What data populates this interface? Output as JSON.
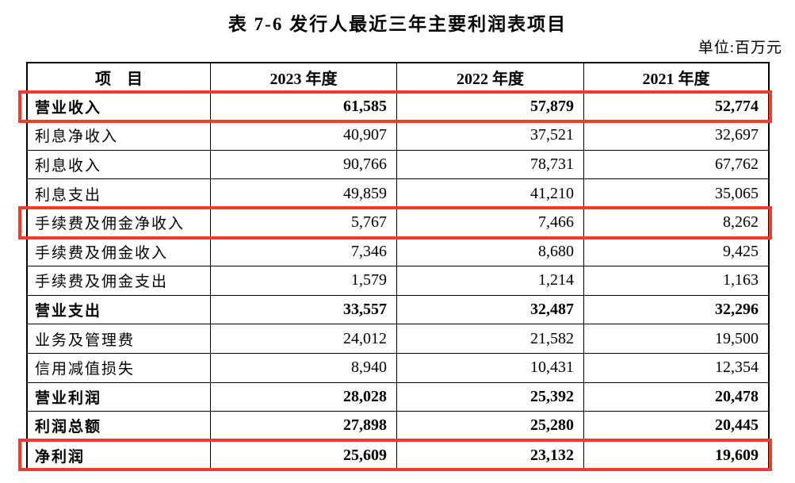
{
  "title": "表 7-6  发行人最近三年主要利润表项目",
  "unit": "单位:百万元",
  "colors": {
    "highlight_red": "#f23b2c",
    "border": "#000000",
    "text": "#000000"
  },
  "table": {
    "columns": [
      "项　目",
      "2023 年度",
      "2022 年度",
      "2021 年度"
    ],
    "rows": [
      {
        "label": "营业收入",
        "values": [
          "61,585",
          "57,879",
          "52,774"
        ],
        "bold": true,
        "highlight": true
      },
      {
        "label": "利息净收入",
        "values": [
          "40,907",
          "37,521",
          "32,697"
        ],
        "bold": false,
        "highlight": false
      },
      {
        "label": "利息收入",
        "values": [
          "90,766",
          "78,731",
          "67,762"
        ],
        "bold": false,
        "highlight": false
      },
      {
        "label": "利息支出",
        "values": [
          "49,859",
          "41,210",
          "35,065"
        ],
        "bold": false,
        "highlight": false
      },
      {
        "label": "手续费及佣金净收入",
        "values": [
          "5,767",
          "7,466",
          "8,262"
        ],
        "bold": false,
        "highlight": true
      },
      {
        "label": "手续费及佣金收入",
        "values": [
          "7,346",
          "8,680",
          "9,425"
        ],
        "bold": false,
        "highlight": false
      },
      {
        "label": "手续费及佣金支出",
        "values": [
          "1,579",
          "1,214",
          "1,163"
        ],
        "bold": false,
        "highlight": false
      },
      {
        "label": "营业支出",
        "values": [
          "33,557",
          "32,487",
          "32,296"
        ],
        "bold": true,
        "highlight": false
      },
      {
        "label": "业务及管理费",
        "values": [
          "24,012",
          "21,582",
          "19,500"
        ],
        "bold": false,
        "highlight": false
      },
      {
        "label": "信用减值损失",
        "values": [
          "8,940",
          "10,431",
          "12,354"
        ],
        "bold": false,
        "highlight": false
      },
      {
        "label": "营业利润",
        "values": [
          "28,028",
          "25,392",
          "20,478"
        ],
        "bold": true,
        "highlight": false
      },
      {
        "label": "利润总额",
        "values": [
          "27,898",
          "25,280",
          "20,445"
        ],
        "bold": true,
        "highlight": false
      },
      {
        "label": "净利润",
        "values": [
          "25,609",
          "23,132",
          "19,609"
        ],
        "bold": true,
        "highlight": true
      }
    ]
  }
}
